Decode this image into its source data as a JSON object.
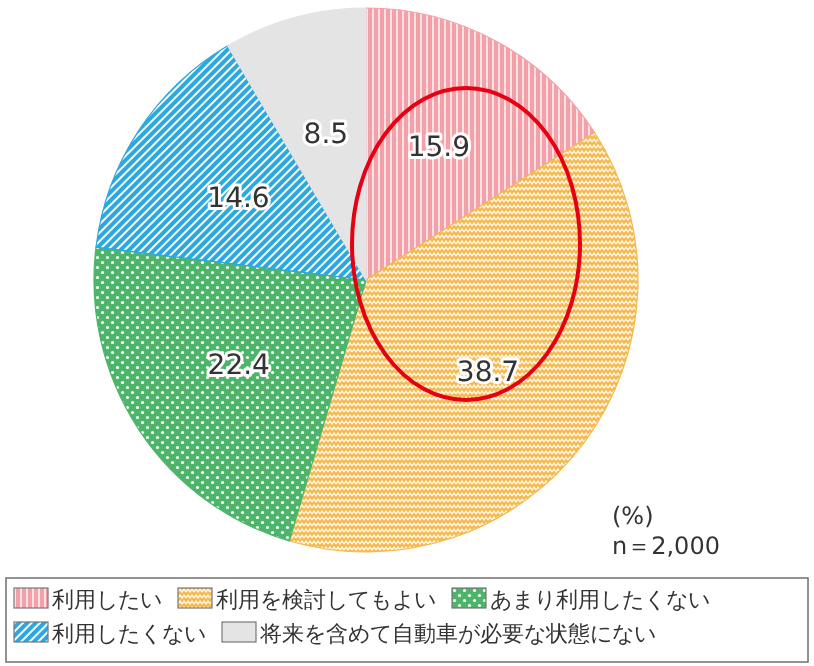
{
  "chart_data": {
    "type": "pie",
    "categories": [
      "利用したい",
      "利用を検討してもよい",
      "あまり利用したくない",
      "利用したくない",
      "将来を含めて自動車が必要な状態にない"
    ],
    "values": [
      15.9,
      38.7,
      22.4,
      14.6,
      8.5
    ],
    "colors": [
      "#f4a0a8",
      "#f7b84a",
      "#4db56a",
      "#2aa8e0",
      "#e4e4e4"
    ],
    "data_labels": true,
    "legend": "bottom",
    "annotations": [
      "(%)",
      "n＝2,000"
    ]
  }
}
